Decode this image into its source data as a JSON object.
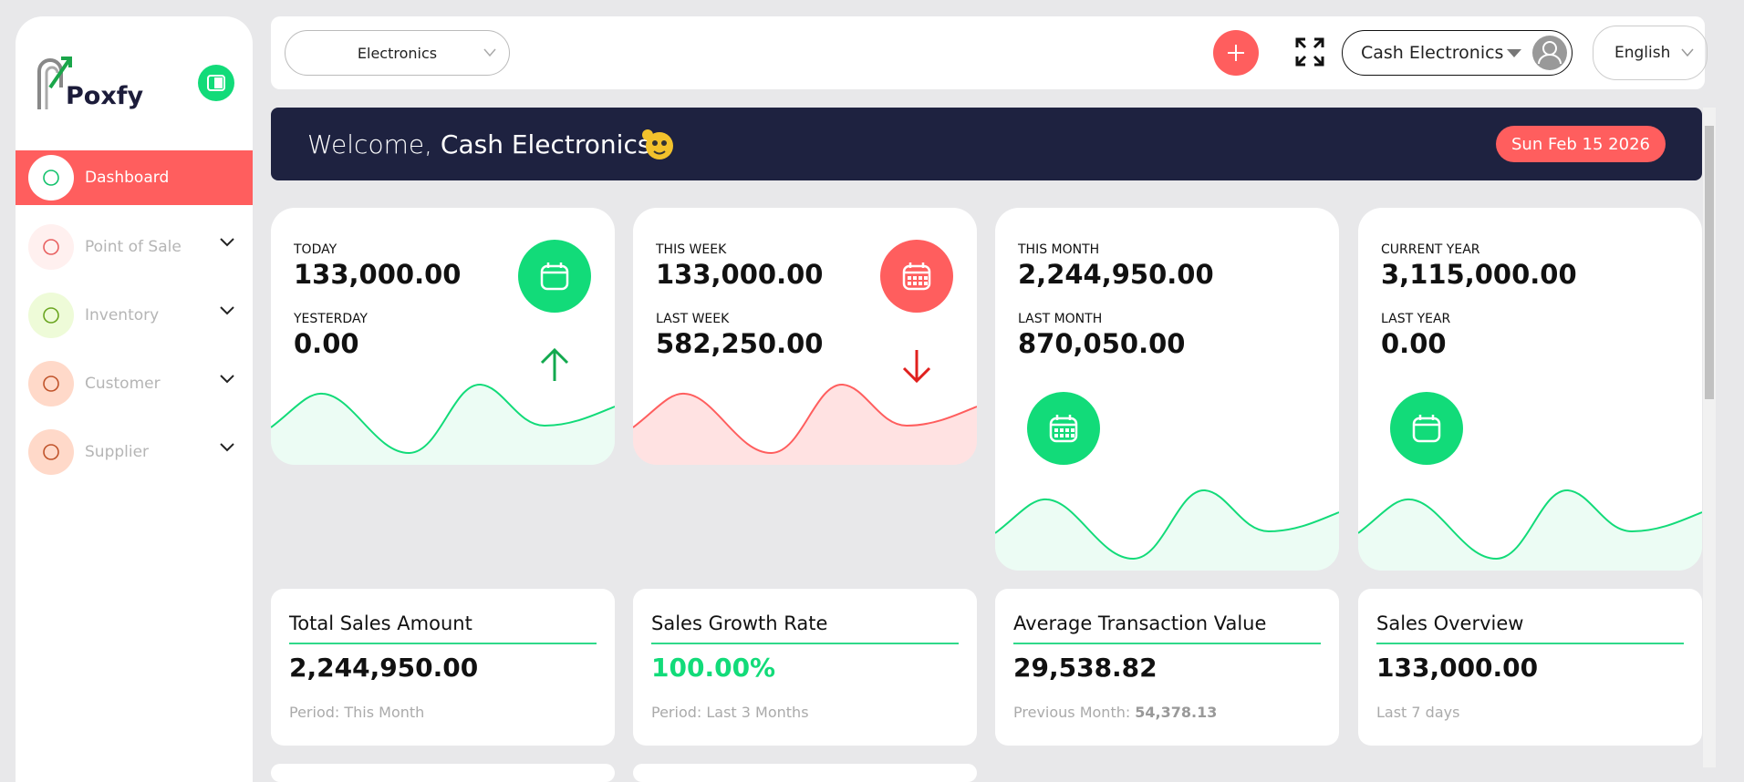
{
  "logo": {
    "text": "Poxfy"
  },
  "sidebar": {
    "items": [
      "Dashboard",
      "Point of Sale",
      "Inventory",
      "Customer",
      "Supplier"
    ]
  },
  "topbar": {
    "store_select": "Electronics",
    "user": "Cash Electronics",
    "language": "English"
  },
  "banner": {
    "greeting": "Welcome,",
    "name": "Cash Electronics",
    "date": "Sun Feb 15 2026"
  },
  "period_cards": [
    {
      "label": "TODAY",
      "value": "133,000.00",
      "prev_label": "YESTERDAY",
      "prev_value": "0.00"
    },
    {
      "label": "THIS WEEK",
      "value": "133,000.00",
      "prev_label": "LAST WEEK",
      "prev_value": "582,250.00"
    },
    {
      "label": "THIS MONTH",
      "value": "2,244,950.00",
      "prev_label": "LAST MONTH",
      "prev_value": "870,050.00"
    },
    {
      "label": "CURRENT YEAR",
      "value": "3,115,000.00",
      "prev_label": "LAST YEAR",
      "prev_value": "0.00"
    }
  ],
  "stat_cards": [
    {
      "title": "Total Sales Amount",
      "value": "2,244,950.00",
      "note": "Period: This Month"
    },
    {
      "title": "Sales Growth Rate",
      "value": "100.00%",
      "note": "Period: Last 3 Months"
    },
    {
      "title": "Average Transaction Value",
      "value": "29,538.82",
      "note": "Previous Month:",
      "note_value": "54,378.13"
    },
    {
      "title": "Sales Overview",
      "value": "133,000.00",
      "note": "Last 7 days"
    }
  ]
}
